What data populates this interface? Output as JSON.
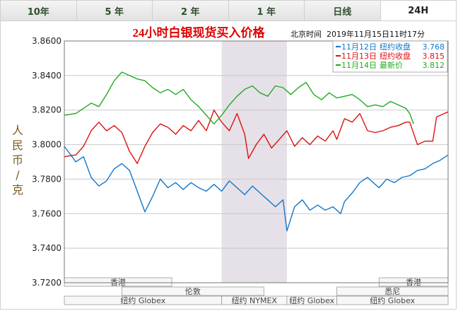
{
  "tabs": [
    {
      "label": "10年",
      "active": false
    },
    {
      "label": "5 年",
      "active": false
    },
    {
      "label": "2 年",
      "active": false
    },
    {
      "label": "1 年",
      "active": false
    },
    {
      "label": "日线",
      "active": false
    },
    {
      "label": "24H",
      "active": true
    }
  ],
  "chart_data": {
    "type": "line",
    "title": "24小时白银现货买入价格",
    "timestamp": "北京时间  2019年11月15日11时17分",
    "ylabel": "人民币/克",
    "ylim": [
      3.72,
      3.86
    ],
    "yticks": [
      "3.8600",
      "3.8400",
      "3.8200",
      "3.8000",
      "3.7800",
      "3.7600",
      "3.7400",
      "3.7200"
    ],
    "legend_position": "top-right",
    "x_range": [
      0,
      100
    ],
    "series": [
      {
        "name": "11月12日",
        "legend_label": "纽约收盘",
        "legend_value": "3.768",
        "color": "#1177cc",
        "points": [
          [
            0,
            3.799
          ],
          [
            3,
            3.79
          ],
          [
            5,
            3.793
          ],
          [
            7,
            3.781
          ],
          [
            9,
            3.776
          ],
          [
            11,
            3.779
          ],
          [
            13,
            3.786
          ],
          [
            15,
            3.789
          ],
          [
            17,
            3.785
          ],
          [
            19,
            3.773
          ],
          [
            21,
            3.761
          ],
          [
            23,
            3.77
          ],
          [
            25,
            3.78
          ],
          [
            27,
            3.775
          ],
          [
            29,
            3.778
          ],
          [
            31,
            3.774
          ],
          [
            33,
            3.778
          ],
          [
            35,
            3.775
          ],
          [
            37,
            3.773
          ],
          [
            39,
            3.777
          ],
          [
            41,
            3.773
          ],
          [
            43,
            3.779
          ],
          [
            45,
            3.775
          ],
          [
            47,
            3.771
          ],
          [
            49,
            3.776
          ],
          [
            51,
            3.772
          ],
          [
            53,
            3.768
          ],
          [
            55,
            3.764
          ],
          [
            57,
            3.768
          ],
          [
            58,
            3.75
          ],
          [
            60,
            3.764
          ],
          [
            62,
            3.768
          ],
          [
            64,
            3.762
          ],
          [
            66,
            3.765
          ],
          [
            68,
            3.762
          ],
          [
            70,
            3.764
          ],
          [
            72,
            3.76
          ],
          [
            73,
            3.767
          ],
          [
            75,
            3.772
          ],
          [
            77,
            3.778
          ],
          [
            79,
            3.781
          ],
          [
            81,
            3.777
          ],
          [
            82,
            3.775
          ],
          [
            84,
            3.78
          ],
          [
            86,
            3.778
          ],
          [
            88,
            3.781
          ],
          [
            90,
            3.782
          ],
          [
            92,
            3.785
          ],
          [
            94,
            3.786
          ],
          [
            96,
            3.789
          ],
          [
            98,
            3.791
          ],
          [
            100,
            3.794
          ]
        ]
      },
      {
        "name": "11月13日",
        "legend_label": "纽约收盘",
        "legend_value": "3.815",
        "color": "#dd1111",
        "points": [
          [
            0,
            3.793
          ],
          [
            3,
            3.794
          ],
          [
            5,
            3.799
          ],
          [
            7,
            3.808
          ],
          [
            9,
            3.813
          ],
          [
            11,
            3.808
          ],
          [
            13,
            3.811
          ],
          [
            15,
            3.807
          ],
          [
            17,
            3.796
          ],
          [
            19,
            3.789
          ],
          [
            21,
            3.799
          ],
          [
            23,
            3.807
          ],
          [
            25,
            3.812
          ],
          [
            27,
            3.81
          ],
          [
            29,
            3.806
          ],
          [
            31,
            3.811
          ],
          [
            33,
            3.808
          ],
          [
            35,
            3.814
          ],
          [
            37,
            3.808
          ],
          [
            39,
            3.82
          ],
          [
            41,
            3.813
          ],
          [
            43,
            3.808
          ],
          [
            45,
            3.818
          ],
          [
            47,
            3.806
          ],
          [
            48,
            3.792
          ],
          [
            50,
            3.8
          ],
          [
            52,
            3.806
          ],
          [
            54,
            3.798
          ],
          [
            56,
            3.803
          ],
          [
            58,
            3.808
          ],
          [
            60,
            3.799
          ],
          [
            62,
            3.804
          ],
          [
            64,
            3.8
          ],
          [
            66,
            3.805
          ],
          [
            68,
            3.802
          ],
          [
            70,
            3.808
          ],
          [
            71,
            3.803
          ],
          [
            73,
            3.815
          ],
          [
            75,
            3.813
          ],
          [
            77,
            3.818
          ],
          [
            79,
            3.808
          ],
          [
            81,
            3.807
          ],
          [
            83,
            3.808
          ],
          [
            85,
            3.81
          ],
          [
            87,
            3.811
          ],
          [
            89,
            3.813
          ],
          [
            90,
            3.813
          ],
          [
            92,
            3.8
          ],
          [
            94,
            3.802
          ],
          [
            96,
            3.802
          ],
          [
            97,
            3.816
          ],
          [
            99,
            3.818
          ],
          [
            100,
            3.819
          ]
        ]
      },
      {
        "name": "11月14日",
        "legend_label": "最新价",
        "legend_value": "3.812",
        "color": "#22aa22",
        "points": [
          [
            0,
            3.817
          ],
          [
            3,
            3.818
          ],
          [
            5,
            3.821
          ],
          [
            7,
            3.824
          ],
          [
            9,
            3.822
          ],
          [
            11,
            3.829
          ],
          [
            13,
            3.837
          ],
          [
            15,
            3.842
          ],
          [
            17,
            3.84
          ],
          [
            19,
            3.838
          ],
          [
            21,
            3.837
          ],
          [
            23,
            3.833
          ],
          [
            25,
            3.83
          ],
          [
            27,
            3.832
          ],
          [
            29,
            3.829
          ],
          [
            31,
            3.832
          ],
          [
            33,
            3.826
          ],
          [
            35,
            3.822
          ],
          [
            37,
            3.817
          ],
          [
            39,
            3.812
          ],
          [
            41,
            3.817
          ],
          [
            43,
            3.823
          ],
          [
            45,
            3.828
          ],
          [
            47,
            3.832
          ],
          [
            49,
            3.834
          ],
          [
            51,
            3.83
          ],
          [
            53,
            3.828
          ],
          [
            55,
            3.834
          ],
          [
            57,
            3.833
          ],
          [
            59,
            3.829
          ],
          [
            61,
            3.833
          ],
          [
            63,
            3.836
          ],
          [
            65,
            3.829
          ],
          [
            67,
            3.826
          ],
          [
            69,
            3.83
          ],
          [
            71,
            3.827
          ],
          [
            73,
            3.828
          ],
          [
            75,
            3.829
          ],
          [
            77,
            3.826
          ],
          [
            79,
            3.822
          ],
          [
            81,
            3.823
          ],
          [
            83,
            3.822
          ],
          [
            85,
            3.825
          ],
          [
            87,
            3.823
          ],
          [
            89,
            3.821
          ],
          [
            90,
            3.818
          ],
          [
            91,
            3.812
          ]
        ]
      }
    ],
    "shaded_region": {
      "x": [
        41,
        58
      ]
    },
    "market_rows": [
      {
        "label": "香港",
        "x": [
          0,
          28
        ]
      },
      {
        "label": "香港",
        "x": [
          82,
          100
        ]
      },
      {
        "label": "伦敦",
        "x": [
          15,
          52
        ]
      },
      {
        "label": "悉尼",
        "x": [
          71,
          100
        ]
      },
      {
        "label": "纽约 Globex",
        "x": [
          0,
          41
        ]
      },
      {
        "label": "纽约 NYMEX",
        "x": [
          41,
          58
        ]
      },
      {
        "label": "纽约 Globex",
        "x": [
          58,
          71
        ]
      },
      {
        "label": "纽约 Globex",
        "x": [
          71,
          100
        ]
      }
    ]
  }
}
